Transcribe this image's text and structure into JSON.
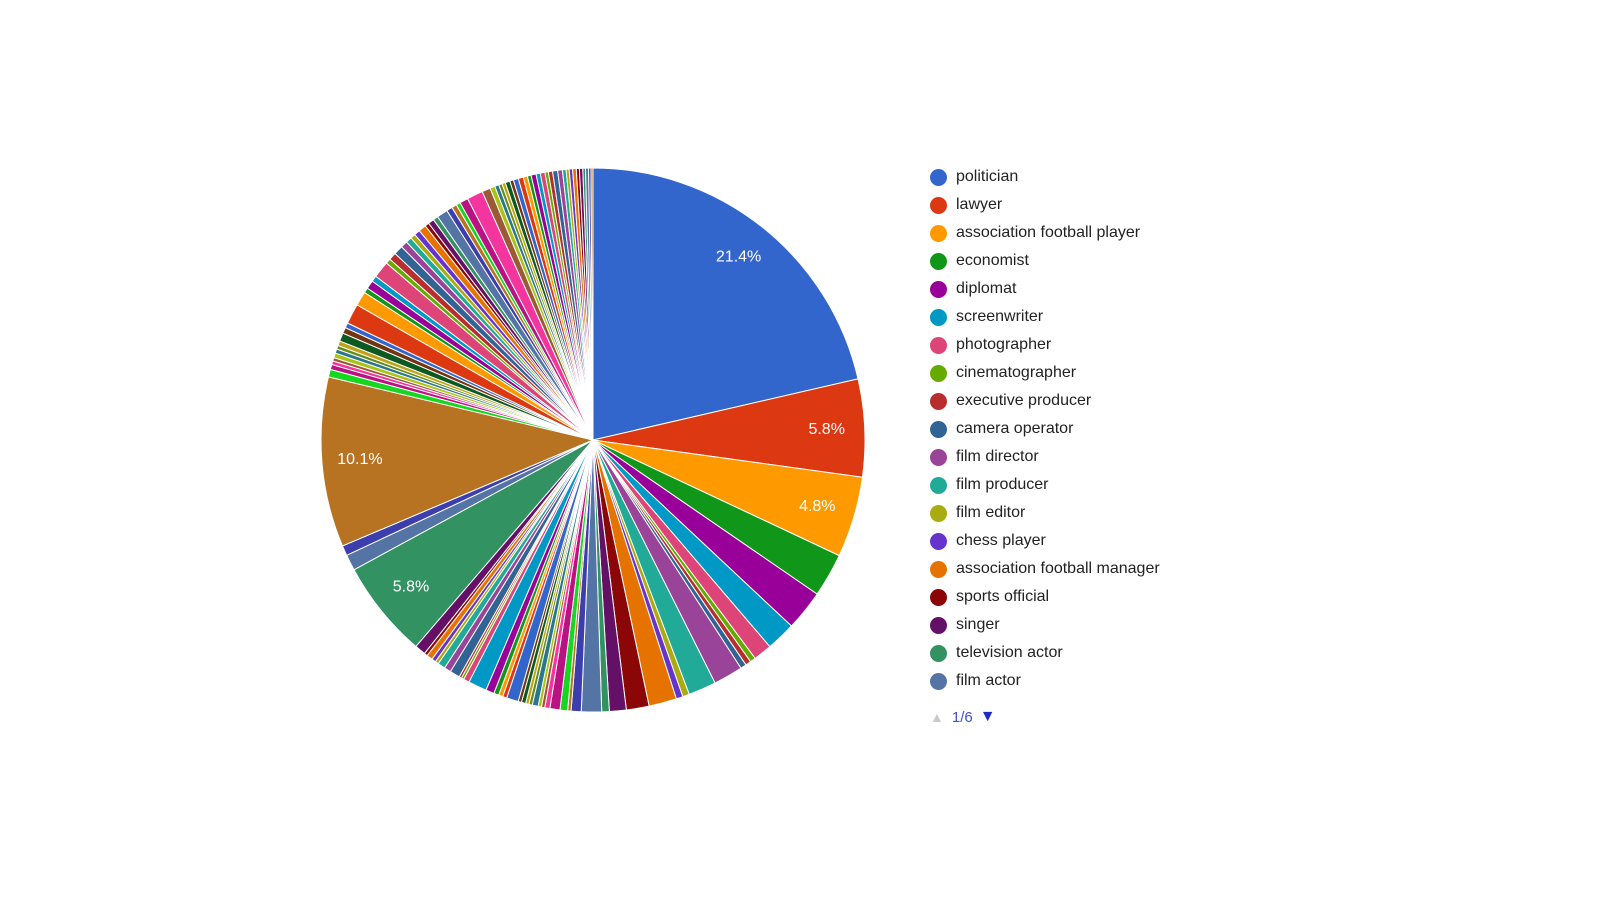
{
  "chart_data": {
    "type": "pie",
    "title": "",
    "background": "#ffffff",
    "legend_position": "right",
    "start_angle_deg": 0,
    "direction": "clockwise",
    "slice_border_color": "#ffffff",
    "slice_label_color": "#ffffff",
    "slice_label_min_pct": 4,
    "visible_slice_labels": [
      "21.4%",
      "5.8%",
      "4.8%",
      "5.8%",
      "10.1%"
    ],
    "legend_items": [
      {
        "label": "politician",
        "color": "#3366CC"
      },
      {
        "label": "lawyer",
        "color": "#DC3912"
      },
      {
        "label": "association football player",
        "color": "#FF9900"
      },
      {
        "label": "economist",
        "color": "#109618"
      },
      {
        "label": "diplomat",
        "color": "#990099"
      },
      {
        "label": "screenwriter",
        "color": "#0099C6"
      },
      {
        "label": "photographer",
        "color": "#DD4477"
      },
      {
        "label": "cinematographer",
        "color": "#66AA00"
      },
      {
        "label": "executive producer",
        "color": "#B82E2E"
      },
      {
        "label": "camera operator",
        "color": "#316395"
      },
      {
        "label": "film director",
        "color": "#994499"
      },
      {
        "label": "film producer",
        "color": "#22AA99"
      },
      {
        "label": "film editor",
        "color": "#AAAA11"
      },
      {
        "label": "chess player",
        "color": "#6633CC"
      },
      {
        "label": "association football manager",
        "color": "#E67300"
      },
      {
        "label": "sports official",
        "color": "#8B0707"
      },
      {
        "label": "singer",
        "color": "#651067"
      },
      {
        "label": "television actor",
        "color": "#329262"
      },
      {
        "label": "film actor",
        "color": "#5574A6"
      }
    ],
    "palette": [
      "#3366CC",
      "#DC3912",
      "#FF9900",
      "#109618",
      "#990099",
      "#0099C6",
      "#DD4477",
      "#66AA00",
      "#B82E2E",
      "#316395",
      "#994499",
      "#22AA99",
      "#AAAA11",
      "#6633CC",
      "#E67300",
      "#8B0707",
      "#651067",
      "#329262",
      "#5574A6",
      "#3B3EAC",
      "#B77322",
      "#16D620",
      "#B91383",
      "#F4359E",
      "#9C5935",
      "#A9C413",
      "#2A778D",
      "#668D1C",
      "#BEA413",
      "#0C5922",
      "#743411"
    ],
    "values_pct": [
      21.4,
      5.8,
      4.8,
      2.6,
      2.4,
      1.75,
      1.1,
      0.33,
      0.33,
      0.35,
      1.75,
      1.65,
      0.4,
      0.4,
      1.65,
      1.35,
      1.0,
      0.45,
      1.2,
      0.6,
      0.2,
      0.45,
      0.6,
      0.3,
      0.2,
      0.2,
      0.35,
      0.2,
      0.2,
      0.25,
      0.2,
      0.7,
      0.25,
      0.25,
      0.3,
      0.5,
      1.1,
      0.35,
      0.15,
      0.15,
      0.6,
      0.4,
      0.45,
      0.2,
      0.25,
      0.35,
      0.2,
      0.65,
      5.8,
      0.95,
      0.6,
      10.1,
      0.45,
      0.3,
      0.22,
      0.2,
      0.28,
      0.25,
      0.22,
      0.28,
      0.5,
      0.35,
      0.3,
      1.2,
      0.85,
      0.3,
      0.5,
      0.35,
      1.0,
      0.3,
      0.45,
      0.55,
      0.4,
      0.35,
      0.3,
      0.35,
      0.45,
      0.25,
      0.35,
      0.3,
      0.65,
      0.35,
      0.3,
      0.25,
      0.5,
      0.95,
      0.5,
      0.3,
      0.25,
      0.2,
      0.2,
      0.28,
      0.22,
      0.3,
      0.3,
      0.25,
      0.22,
      0.3,
      0.25,
      0.28,
      0.2,
      0.25,
      0.3,
      0.28,
      0.22,
      0.18,
      0.2,
      0.22,
      0.18,
      0.2,
      0.16,
      0.18,
      0.14,
      0.12
    ],
    "pagination": {
      "label": "1/6",
      "up_icon": "▲",
      "down_icon": "▼",
      "up_color": "#c9c9c9",
      "down_color": "#1b2ac5",
      "text_color": "#3b51c9"
    }
  }
}
